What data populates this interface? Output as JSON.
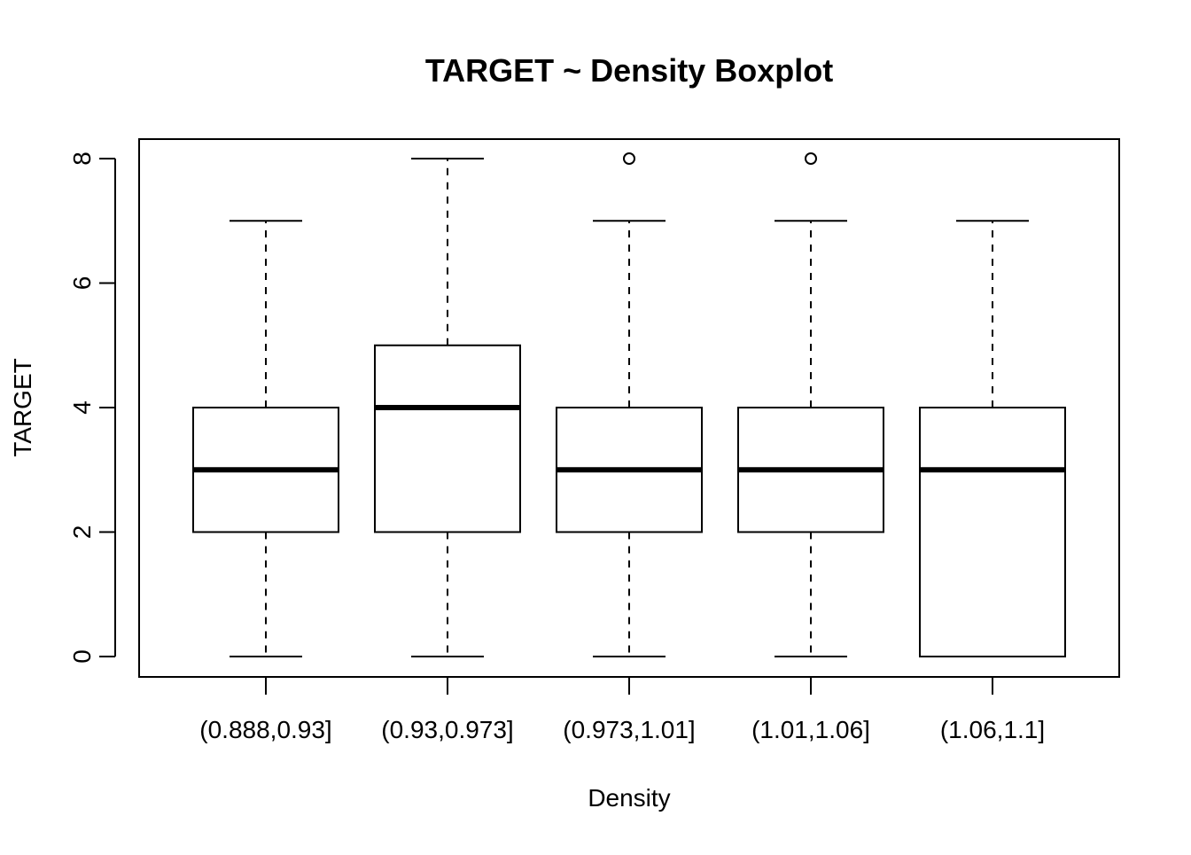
{
  "chart_data": {
    "type": "boxplot",
    "title": "TARGET ~ Density Boxplot",
    "xlabel": "Density",
    "ylabel": "TARGET",
    "ylim": [
      -0.3,
      8.3
    ],
    "yticks": [
      "0",
      "2",
      "4",
      "6",
      "8"
    ],
    "categories": [
      "(0.888,0.93]",
      "(0.93,0.973]",
      "(0.973,1.01]",
      "(1.01,1.06]",
      "(1.06,1.1]"
    ],
    "boxes": [
      {
        "category": "(0.888,0.93]",
        "whisker_low": 0,
        "q1": 2,
        "median": 3,
        "q3": 4,
        "whisker_high": 7,
        "outliers": []
      },
      {
        "category": "(0.93,0.973]",
        "whisker_low": 0,
        "q1": 2,
        "median": 4,
        "q3": 5,
        "whisker_high": 8,
        "outliers": []
      },
      {
        "category": "(0.973,1.01]",
        "whisker_low": 0,
        "q1": 2,
        "median": 3,
        "q3": 4,
        "whisker_high": 7,
        "outliers": [
          8
        ]
      },
      {
        "category": "(1.01,1.06]",
        "whisker_low": 0,
        "q1": 2,
        "median": 3,
        "q3": 4,
        "whisker_high": 7,
        "outliers": [
          8
        ]
      },
      {
        "category": "(1.06,1.1]",
        "whisker_low": 0,
        "q1": 0,
        "median": 3,
        "q3": 4,
        "whisker_high": 7,
        "outliers": []
      }
    ],
    "grid": false,
    "legend": "none"
  }
}
